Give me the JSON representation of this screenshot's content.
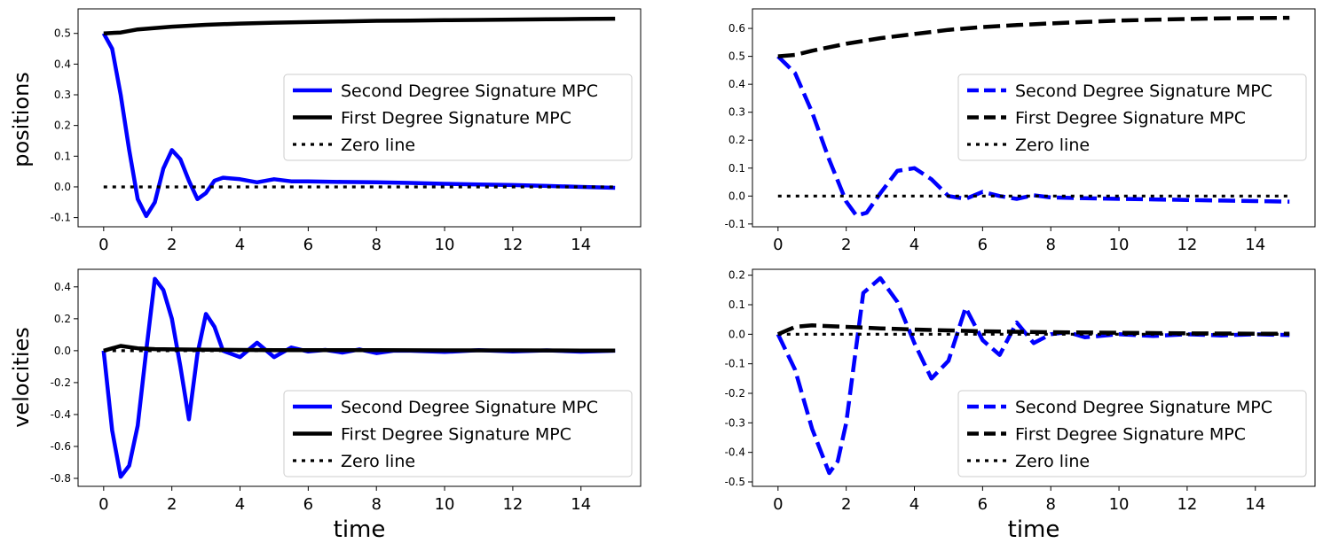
{
  "figure": {
    "row_labels": [
      "positions",
      "velocities"
    ],
    "xlabel": "time"
  },
  "chart_data": [
    {
      "type": "line",
      "ylabel": "positions",
      "xlabel": "",
      "xlim": [
        -0.75,
        15.75
      ],
      "ylim": [
        -0.13,
        0.58
      ],
      "xticks": [
        0,
        2,
        4,
        6,
        8,
        10,
        12,
        14
      ],
      "yticks": [
        -0.1,
        0.0,
        0.1,
        0.2,
        0.3,
        0.4,
        0.5
      ],
      "legend": "center-right",
      "series": [
        {
          "name": "Second Degree Signature MPC",
          "color": "#0000ff",
          "dash": "solid",
          "x": [
            0,
            0.25,
            0.5,
            0.75,
            1.0,
            1.25,
            1.5,
            1.75,
            2.0,
            2.25,
            2.5,
            2.75,
            3.0,
            3.25,
            3.5,
            4.0,
            4.5,
            5.0,
            5.5,
            6.0,
            7.0,
            8.0,
            9.0,
            10.0,
            11.0,
            12.0,
            13.0,
            14.0,
            15.0
          ],
          "y": [
            0.5,
            0.45,
            0.3,
            0.12,
            -0.04,
            -0.095,
            -0.05,
            0.06,
            0.12,
            0.09,
            0.02,
            -0.04,
            -0.02,
            0.02,
            0.03,
            0.025,
            0.015,
            0.025,
            0.018,
            0.018,
            0.016,
            0.015,
            0.013,
            0.01,
            0.008,
            0.006,
            0.003,
            0.0,
            -0.003
          ]
        },
        {
          "name": "First Degree Signature MPC",
          "color": "#000000",
          "dash": "solid",
          "x": [
            0,
            0.5,
            1,
            2,
            3,
            4,
            5,
            6,
            7,
            8,
            9,
            10,
            11,
            12,
            13,
            14,
            15
          ],
          "y": [
            0.5,
            0.503,
            0.513,
            0.522,
            0.528,
            0.532,
            0.535,
            0.537,
            0.539,
            0.541,
            0.542,
            0.543,
            0.544,
            0.545,
            0.546,
            0.547,
            0.548
          ]
        },
        {
          "name": "Zero line",
          "color": "#000000",
          "dash": "dotted",
          "x": [
            0,
            15
          ],
          "y": [
            0.0,
            0.0
          ]
        }
      ]
    },
    {
      "type": "line",
      "ylabel": "",
      "xlabel": "",
      "xlim": [
        -0.75,
        15.75
      ],
      "ylim": [
        -0.11,
        0.67
      ],
      "xticks": [
        0,
        2,
        4,
        6,
        8,
        10,
        12,
        14
      ],
      "yticks": [
        -0.1,
        0.0,
        0.1,
        0.2,
        0.3,
        0.4,
        0.5,
        0.6
      ],
      "legend": "center-right",
      "series": [
        {
          "name": "Second Degree Signature MPC",
          "color": "#0000ff",
          "dash": "dashed",
          "x": [
            0,
            0.5,
            1.0,
            1.5,
            2.0,
            2.3,
            2.6,
            3.0,
            3.5,
            4.0,
            4.5,
            5.0,
            5.5,
            6.0,
            6.5,
            7.0,
            7.5,
            8.0,
            9.0,
            10.0,
            11.0,
            12.0,
            13.0,
            14.0,
            15.0
          ],
          "y": [
            0.5,
            0.44,
            0.3,
            0.13,
            -0.02,
            -0.07,
            -0.06,
            0.01,
            0.09,
            0.1,
            0.06,
            0.0,
            -0.01,
            0.015,
            0.0,
            -0.01,
            0.003,
            -0.005,
            -0.008,
            -0.01,
            -0.012,
            -0.014,
            -0.016,
            -0.018,
            -0.02
          ]
        },
        {
          "name": "First Degree Signature MPC",
          "color": "#000000",
          "dash": "dashed",
          "x": [
            0,
            0.5,
            1,
            2,
            3,
            4,
            5,
            6,
            7,
            8,
            9,
            10,
            11,
            12,
            13,
            14,
            15
          ],
          "y": [
            0.5,
            0.505,
            0.52,
            0.545,
            0.565,
            0.58,
            0.595,
            0.605,
            0.612,
            0.618,
            0.623,
            0.628,
            0.631,
            0.634,
            0.636,
            0.637,
            0.638
          ]
        },
        {
          "name": "Zero line",
          "color": "#000000",
          "dash": "dotted",
          "x": [
            0,
            15
          ],
          "y": [
            0.0,
            0.0
          ]
        }
      ]
    },
    {
      "type": "line",
      "ylabel": "velocities",
      "xlabel": "time",
      "xlim": [
        -0.75,
        15.75
      ],
      "ylim": [
        -0.85,
        0.51
      ],
      "xticks": [
        0,
        2,
        4,
        6,
        8,
        10,
        12,
        14
      ],
      "yticks": [
        -0.8,
        -0.6,
        -0.4,
        -0.2,
        0.0,
        0.2,
        0.4
      ],
      "legend": "lower-right",
      "series": [
        {
          "name": "Second Degree Signature MPC",
          "color": "#0000ff",
          "dash": "solid",
          "x": [
            0,
            0.25,
            0.5,
            0.75,
            1.0,
            1.25,
            1.5,
            1.75,
            2.0,
            2.25,
            2.5,
            2.75,
            3.0,
            3.25,
            3.5,
            4.0,
            4.5,
            5.0,
            5.5,
            6.0,
            6.5,
            7.0,
            7.5,
            8.0,
            8.5,
            9.0,
            10.0,
            11.0,
            12.0,
            13.0,
            14.0,
            15.0
          ],
          "y": [
            0.0,
            -0.5,
            -0.79,
            -0.72,
            -0.47,
            0.0,
            0.45,
            0.38,
            0.2,
            -0.1,
            -0.43,
            -0.02,
            0.23,
            0.15,
            0.0,
            -0.04,
            0.05,
            -0.04,
            0.02,
            -0.005,
            0.005,
            -0.012,
            0.008,
            -0.015,
            0.0,
            0.0,
            -0.008,
            0.003,
            -0.005,
            0.002,
            -0.006,
            0.0
          ]
        },
        {
          "name": "First Degree Signature MPC",
          "color": "#000000",
          "dash": "solid",
          "x": [
            0,
            0.5,
            1,
            1.5,
            2,
            3,
            4,
            5,
            6,
            8,
            10,
            12,
            14,
            15
          ],
          "y": [
            0.0,
            0.03,
            0.015,
            0.01,
            0.008,
            0.006,
            0.005,
            0.004,
            0.004,
            0.003,
            0.002,
            0.002,
            0.001,
            0.001
          ]
        },
        {
          "name": "Zero line",
          "color": "#000000",
          "dash": "dotted",
          "x": [
            0,
            15
          ],
          "y": [
            0.0,
            0.0
          ]
        }
      ]
    },
    {
      "type": "line",
      "ylabel": "",
      "xlabel": "time",
      "xlim": [
        -0.75,
        15.75
      ],
      "ylim": [
        -0.515,
        0.22
      ],
      "xticks": [
        0,
        2,
        4,
        6,
        8,
        10,
        12,
        14
      ],
      "yticks": [
        -0.5,
        -0.4,
        -0.3,
        -0.2,
        -0.1,
        0.0,
        0.1,
        0.2
      ],
      "legend": "lower-right",
      "series": [
        {
          "name": "Second Degree Signature MPC",
          "color": "#0000ff",
          "dash": "dashed",
          "x": [
            0,
            0.5,
            1.0,
            1.5,
            1.75,
            2.0,
            2.5,
            3.0,
            3.5,
            4.0,
            4.5,
            5.0,
            5.5,
            6.0,
            6.5,
            7.0,
            7.5,
            8.0,
            8.5,
            9.0,
            10.0,
            11.0,
            12.0,
            13.0,
            14.0,
            15.0
          ],
          "y": [
            0.0,
            -0.12,
            -0.32,
            -0.47,
            -0.43,
            -0.3,
            0.14,
            0.19,
            0.11,
            -0.03,
            -0.15,
            -0.09,
            0.09,
            -0.02,
            -0.07,
            0.04,
            -0.03,
            0.0,
            0.007,
            -0.01,
            0.0,
            -0.006,
            0.0,
            -0.004,
            0.0,
            -0.003
          ]
        },
        {
          "name": "First Degree Signature MPC",
          "color": "#000000",
          "dash": "dashed",
          "x": [
            0,
            0.5,
            1,
            2,
            3,
            4,
            5,
            6,
            8,
            10,
            12,
            14,
            15
          ],
          "y": [
            0.0,
            0.025,
            0.03,
            0.025,
            0.02,
            0.016,
            0.013,
            0.01,
            0.007,
            0.005,
            0.003,
            0.002,
            0.002
          ]
        },
        {
          "name": "Zero line",
          "color": "#000000",
          "dash": "dotted",
          "x": [
            0,
            15
          ],
          "y": [
            0.0,
            0.0
          ]
        }
      ]
    }
  ]
}
